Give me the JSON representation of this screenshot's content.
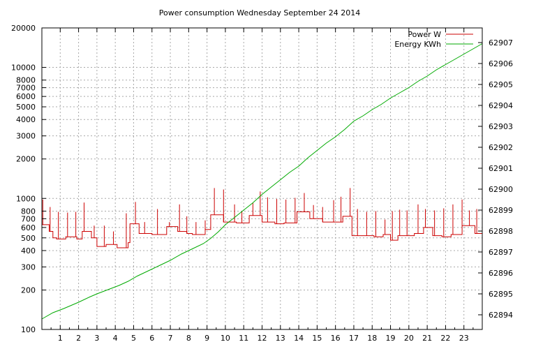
{
  "chart_data": {
    "type": "line",
    "title": "Power consumption Wednesday September 24 2014",
    "xlabel": "",
    "ylabel": "",
    "y2label": "",
    "xlim": [
      0,
      24
    ],
    "ylim": [
      100,
      20000
    ],
    "yscale": "log",
    "y2lim": [
      62893.3,
      62907.7
    ],
    "grid": true,
    "legend_position": "top-right",
    "x_ticks": [
      1,
      2,
      3,
      4,
      5,
      6,
      7,
      8,
      9,
      10,
      11,
      12,
      13,
      14,
      15,
      16,
      17,
      18,
      19,
      20,
      21,
      22,
      23
    ],
    "x_tick_labels": [
      "1",
      "2",
      "3",
      "4",
      "5",
      "6",
      "7",
      "8",
      "9",
      "10",
      "11",
      "12",
      "13",
      "14",
      "15",
      "16",
      "17",
      "18",
      "19",
      "20",
      "21",
      "22",
      "23"
    ],
    "y_ticks": [
      100,
      200,
      300,
      400,
      500,
      600,
      700,
      800,
      1000,
      2000,
      3000,
      4000,
      5000,
      6000,
      7000,
      8000,
      10000,
      20000
    ],
    "y_tick_labels": [
      "100",
      "200",
      "300",
      "400",
      "500",
      "600",
      "700",
      "800",
      "1000",
      "2000",
      "3000",
      "4000",
      "5000",
      "6000",
      "7000",
      "8000",
      "10000",
      "20000"
    ],
    "y2_ticks": [
      62894,
      62895,
      62896,
      62897,
      62898,
      62899,
      62900,
      62901,
      62902,
      62903,
      62904,
      62905,
      62906,
      62907
    ],
    "y2_tick_labels": [
      "62894",
      "62895",
      "62896",
      "62897",
      "62898",
      "62899",
      "62900",
      "62901",
      "62902",
      "62903",
      "62904",
      "62905",
      "62906",
      "62907"
    ],
    "series": [
      {
        "name": "Power W",
        "axis": "y",
        "color": "#cc0000",
        "base": [
          [
            0.0,
            630
          ],
          [
            0.4,
            560
          ],
          [
            0.6,
            500
          ],
          [
            0.8,
            490
          ],
          [
            1.3,
            510
          ],
          [
            1.9,
            490
          ],
          [
            2.2,
            560
          ],
          [
            2.7,
            500
          ],
          [
            3.0,
            430
          ],
          [
            3.5,
            445
          ],
          [
            4.1,
            420
          ],
          [
            4.7,
            460
          ],
          [
            4.8,
            640
          ],
          [
            5.3,
            540
          ],
          [
            6.0,
            530
          ],
          [
            6.5,
            530
          ],
          [
            6.8,
            610
          ],
          [
            7.4,
            560
          ],
          [
            7.9,
            540
          ],
          [
            8.2,
            530
          ],
          [
            8.9,
            580
          ],
          [
            9.2,
            750
          ],
          [
            9.9,
            660
          ],
          [
            10.6,
            650
          ],
          [
            11.3,
            740
          ],
          [
            12.0,
            660
          ],
          [
            12.7,
            640
          ],
          [
            13.2,
            650
          ],
          [
            13.9,
            790
          ],
          [
            14.6,
            700
          ],
          [
            15.3,
            660
          ],
          [
            16.4,
            730
          ],
          [
            16.9,
            520
          ],
          [
            17.6,
            520
          ],
          [
            18.1,
            510
          ],
          [
            18.6,
            530
          ],
          [
            19.0,
            480
          ],
          [
            19.4,
            520
          ],
          [
            20.3,
            540
          ],
          [
            20.8,
            600
          ],
          [
            21.3,
            520
          ],
          [
            21.8,
            510
          ],
          [
            22.3,
            530
          ],
          [
            22.9,
            620
          ],
          [
            23.6,
            540
          ],
          [
            24.0,
            540
          ]
        ],
        "spikes": [
          [
            0.05,
            980
          ],
          [
            0.45,
            860
          ],
          [
            0.9,
            790
          ],
          [
            1.4,
            780
          ],
          [
            1.85,
            790
          ],
          [
            2.3,
            930
          ],
          [
            2.85,
            620
          ],
          [
            3.4,
            620
          ],
          [
            3.9,
            560
          ],
          [
            4.6,
            770
          ],
          [
            5.1,
            940
          ],
          [
            5.6,
            660
          ],
          [
            6.3,
            830
          ],
          [
            6.95,
            660
          ],
          [
            7.5,
            900
          ],
          [
            7.9,
            730
          ],
          [
            8.4,
            660
          ],
          [
            8.9,
            680
          ],
          [
            9.4,
            1200
          ],
          [
            9.9,
            1170
          ],
          [
            10.5,
            900
          ],
          [
            10.9,
            800
          ],
          [
            11.5,
            920
          ],
          [
            11.9,
            1130
          ],
          [
            12.3,
            1020
          ],
          [
            12.8,
            990
          ],
          [
            13.3,
            980
          ],
          [
            13.8,
            1010
          ],
          [
            14.3,
            1100
          ],
          [
            14.8,
            890
          ],
          [
            15.3,
            860
          ],
          [
            15.9,
            970
          ],
          [
            16.3,
            1030
          ],
          [
            16.8,
            1200
          ],
          [
            17.2,
            830
          ],
          [
            17.7,
            790
          ],
          [
            18.2,
            800
          ],
          [
            18.7,
            690
          ],
          [
            19.1,
            800
          ],
          [
            19.5,
            820
          ],
          [
            19.9,
            810
          ],
          [
            20.5,
            900
          ],
          [
            20.9,
            830
          ],
          [
            21.4,
            810
          ],
          [
            21.9,
            840
          ],
          [
            22.4,
            900
          ],
          [
            22.9,
            980
          ],
          [
            23.3,
            810
          ],
          [
            23.7,
            830
          ]
        ]
      },
      {
        "name": "Energy KWh",
        "axis": "y2",
        "color": "#00aa00",
        "points": [
          [
            0.0,
            62893.8
          ],
          [
            0.6,
            62894.1
          ],
          [
            1.2,
            62894.3
          ],
          [
            2.0,
            62894.6
          ],
          [
            2.6,
            62894.85
          ],
          [
            3.0,
            62895.0
          ],
          [
            3.6,
            62895.2
          ],
          [
            4.2,
            62895.4
          ],
          [
            4.7,
            62895.6
          ],
          [
            5.2,
            62895.85
          ],
          [
            5.8,
            62896.1
          ],
          [
            6.4,
            62896.35
          ],
          [
            7.0,
            62896.6
          ],
          [
            7.6,
            62896.9
          ],
          [
            8.2,
            62897.15
          ],
          [
            8.8,
            62897.4
          ],
          [
            9.2,
            62897.65
          ],
          [
            9.6,
            62897.95
          ],
          [
            10.0,
            62898.3
          ],
          [
            10.5,
            62898.65
          ],
          [
            11.0,
            62899.0
          ],
          [
            11.5,
            62899.35
          ],
          [
            12.0,
            62899.75
          ],
          [
            12.5,
            62900.1
          ],
          [
            13.0,
            62900.45
          ],
          [
            13.5,
            62900.8
          ],
          [
            14.0,
            62901.1
          ],
          [
            14.5,
            62901.5
          ],
          [
            15.0,
            62901.85
          ],
          [
            15.5,
            62902.2
          ],
          [
            16.0,
            62902.5
          ],
          [
            16.5,
            62902.85
          ],
          [
            17.0,
            62903.25
          ],
          [
            17.5,
            62903.5
          ],
          [
            18.0,
            62903.8
          ],
          [
            18.5,
            62904.05
          ],
          [
            19.0,
            62904.35
          ],
          [
            19.5,
            62904.6
          ],
          [
            20.0,
            62904.85
          ],
          [
            20.5,
            62905.15
          ],
          [
            21.0,
            62905.4
          ],
          [
            21.5,
            62905.7
          ],
          [
            22.0,
            62905.95
          ],
          [
            22.5,
            62906.2
          ],
          [
            23.0,
            62906.45
          ],
          [
            23.5,
            62906.7
          ],
          [
            24.0,
            62906.95
          ]
        ]
      }
    ]
  }
}
